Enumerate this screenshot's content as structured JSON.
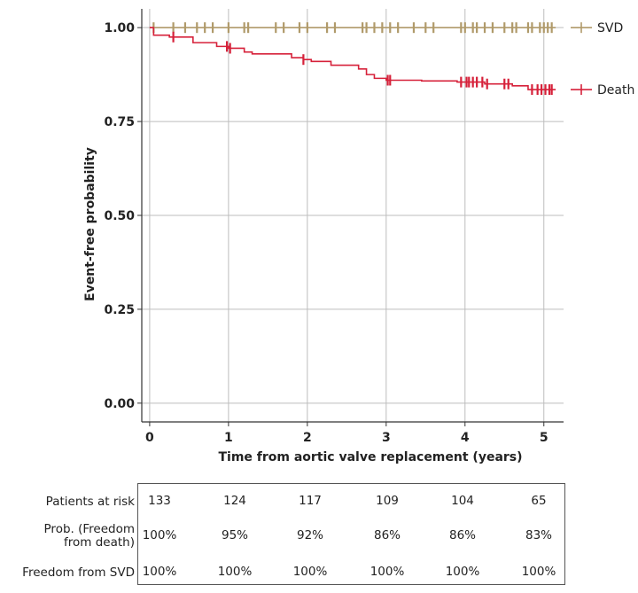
{
  "chart_data": {
    "type": "line",
    "xlabel": "Time from aortic valve replacement (years)",
    "ylabel": "Event-free probability",
    "xlim": [
      -0.1,
      5.25
    ],
    "ylim": [
      -0.05,
      1.05
    ],
    "xticks": [
      "0",
      "1",
      "2",
      "3",
      "4",
      "5"
    ],
    "yticks": [
      "0.00",
      "0.25",
      "0.50",
      "0.75",
      "1.00"
    ],
    "legend_position": "right",
    "grid": true,
    "series": [
      {
        "name": "SVD",
        "color": "#b09a6a",
        "steps": [
          [
            0,
            1.0
          ],
          [
            5.15,
            1.0
          ]
        ],
        "censors": [
          0.05,
          0.3,
          0.45,
          0.6,
          0.7,
          0.8,
          1.0,
          1.2,
          1.25,
          1.6,
          1.7,
          1.9,
          2.0,
          2.25,
          2.35,
          2.7,
          2.75,
          2.85,
          2.95,
          3.05,
          3.15,
          3.35,
          3.5,
          3.6,
          3.95,
          4.0,
          4.1,
          4.15,
          4.25,
          4.35,
          4.5,
          4.6,
          4.65,
          4.8,
          4.85,
          4.95,
          5.0,
          5.05,
          5.1
        ]
      },
      {
        "name": "Death",
        "color": "#d6213a",
        "steps": [
          [
            0,
            1.0
          ],
          [
            0.05,
            0.98
          ],
          [
            0.25,
            0.975
          ],
          [
            0.55,
            0.96
          ],
          [
            0.85,
            0.95
          ],
          [
            1.0,
            0.945
          ],
          [
            1.2,
            0.935
          ],
          [
            1.3,
            0.93
          ],
          [
            1.8,
            0.92
          ],
          [
            1.95,
            0.915
          ],
          [
            2.05,
            0.91
          ],
          [
            2.3,
            0.9
          ],
          [
            2.65,
            0.89
          ],
          [
            2.75,
            0.875
          ],
          [
            2.85,
            0.865
          ],
          [
            3.0,
            0.86
          ],
          [
            3.45,
            0.858
          ],
          [
            3.9,
            0.855
          ],
          [
            4.25,
            0.85
          ],
          [
            4.6,
            0.845
          ],
          [
            4.8,
            0.835
          ],
          [
            5.15,
            0.835
          ]
        ],
        "censors": [
          0.3,
          0.98,
          1.02,
          1.95,
          3.02,
          3.05,
          3.95,
          4.02,
          4.05,
          4.1,
          4.15,
          4.22,
          4.28,
          4.5,
          4.55,
          4.85,
          4.92,
          4.97,
          5.02,
          5.07,
          5.1
        ]
      }
    ]
  },
  "risk_table": {
    "rows": [
      {
        "label_lines": [
          "Patients at risk"
        ],
        "values": [
          "133",
          "124",
          "117",
          "109",
          "104",
          "65"
        ]
      },
      {
        "label_lines": [
          "Prob. (Freedom",
          "from death)"
        ],
        "values": [
          "100%",
          "95%",
          "92%",
          "86%",
          "86%",
          "83%"
        ]
      },
      {
        "label_lines": [
          "Freedom from SVD"
        ],
        "values": [
          "100%",
          "100%",
          "100%",
          "100%",
          "100%",
          "100%"
        ]
      }
    ]
  }
}
